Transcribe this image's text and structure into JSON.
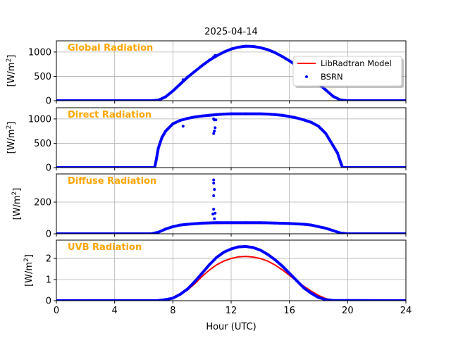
{
  "chart_data": {
    "type": "line",
    "title": "2025-04-14",
    "xlabel": "Hour (UTC)",
    "xlim": [
      0,
      24
    ],
    "xticks": [
      0,
      4,
      8,
      12,
      16,
      20,
      24
    ],
    "grid": true,
    "legend": {
      "placement": "upper-right of first panel",
      "entries": [
        "LibRadtran Model",
        "BSRN"
      ]
    },
    "colors": {
      "model": "#ff0000",
      "bsrn": "#0000ff",
      "panel_title": "#FFA500",
      "grid": "#b0b0b0"
    },
    "ylabel_base": "[W/m",
    "ylabel_sup": "2",
    "ylabel_end": "]",
    "panels": [
      {
        "title": "Global Radiation",
        "ylim": [
          0,
          1230
        ],
        "yticks": [
          0,
          500,
          1000
        ],
        "x": [
          0,
          6.5,
          7,
          7.5,
          8,
          8.5,
          9,
          9.5,
          10,
          10.5,
          11,
          11.5,
          12,
          12.5,
          13,
          13.5,
          14,
          14.5,
          15,
          15.5,
          16,
          16.5,
          17,
          17.5,
          18,
          18.5,
          19,
          19.5,
          20,
          24
        ],
        "bsrn": [
          0,
          0,
          10,
          80,
          200,
          340,
          480,
          600,
          720,
          830,
          920,
          1000,
          1060,
          1100,
          1120,
          1115,
          1090,
          1050,
          990,
          910,
          820,
          720,
          600,
          480,
          350,
          220,
          90,
          15,
          0,
          0
        ],
        "model": [
          0,
          0,
          10,
          80,
          200,
          340,
          480,
          600,
          720,
          830,
          920,
          1000,
          1060,
          1100,
          1120,
          1115,
          1090,
          1050,
          990,
          910,
          820,
          720,
          600,
          480,
          350,
          220,
          90,
          15,
          0,
          0
        ],
        "outliers": [
          [
            8.7,
            430
          ],
          [
            10.8,
            900
          ],
          [
            10.9,
            930
          ]
        ]
      },
      {
        "title": "Direct Radiation",
        "ylim": [
          0,
          1230
        ],
        "yticks": [
          0,
          500,
          1000
        ],
        "x": [
          0,
          6.75,
          6.85,
          7,
          7.25,
          7.5,
          8,
          8.5,
          9,
          9.5,
          10,
          10.5,
          11,
          11.5,
          12,
          13,
          14,
          14.5,
          15,
          15.5,
          16,
          16.5,
          17,
          17.5,
          18,
          18.5,
          19,
          19.3,
          19.55,
          19.65,
          24
        ],
        "bsrn": [
          0,
          0,
          150,
          400,
          620,
          750,
          900,
          970,
          1010,
          1040,
          1060,
          1075,
          1090,
          1100,
          1105,
          1105,
          1105,
          1100,
          1090,
          1075,
          1050,
          1020,
          980,
          930,
          850,
          700,
          450,
          300,
          80,
          0,
          0
        ],
        "model": [
          0,
          0,
          150,
          400,
          620,
          750,
          900,
          970,
          1010,
          1040,
          1060,
          1075,
          1090,
          1100,
          1105,
          1105,
          1105,
          1100,
          1090,
          1075,
          1050,
          1020,
          980,
          930,
          850,
          700,
          450,
          300,
          80,
          0,
          0
        ],
        "outliers": [
          [
            8.7,
            850
          ],
          [
            10.8,
            1000
          ],
          [
            10.85,
            980
          ],
          [
            10.8,
            700
          ],
          [
            10.85,
            750
          ],
          [
            10.9,
            820
          ],
          [
            10.95,
            980
          ]
        ]
      },
      {
        "title": "Diffuse Radiation",
        "ylim": [
          0,
          378
        ],
        "yticks": [
          0,
          200
        ],
        "x": [
          0,
          6.5,
          7,
          7.5,
          8,
          8.5,
          9,
          10,
          11,
          12,
          13,
          14,
          15,
          16,
          17,
          17.5,
          18,
          18.5,
          19,
          19.5,
          20,
          24
        ],
        "bsrn": [
          0,
          0,
          10,
          30,
          45,
          55,
          60,
          67,
          70,
          70,
          70,
          70,
          68,
          65,
          60,
          55,
          45,
          35,
          20,
          5,
          0,
          0
        ],
        "model": [
          0,
          0,
          8,
          28,
          43,
          52,
          58,
          63,
          65,
          66,
          66,
          66,
          65,
          63,
          58,
          53,
          44,
          34,
          19,
          5,
          0,
          0
        ],
        "outliers": [
          [
            10.8,
            340
          ],
          [
            10.8,
            320
          ],
          [
            10.85,
            280
          ],
          [
            10.8,
            240
          ],
          [
            10.8,
            155
          ],
          [
            10.75,
            125
          ],
          [
            10.9,
            130
          ],
          [
            10.85,
            95
          ]
        ]
      },
      {
        "title": "UVB Radiation",
        "ylim": [
          0,
          2.87
        ],
        "yticks": [
          0,
          1,
          2
        ],
        "x": [
          0,
          7,
          7.5,
          8,
          8.5,
          9,
          9.5,
          10,
          10.5,
          11,
          11.5,
          12,
          12.5,
          13,
          13.5,
          14,
          14.5,
          15,
          15.5,
          16,
          16.5,
          17,
          17.5,
          18,
          18.5,
          19,
          24
        ],
        "bsrn": [
          0,
          0.01,
          0.05,
          0.12,
          0.3,
          0.55,
          0.9,
          1.3,
          1.7,
          2.05,
          2.3,
          2.45,
          2.55,
          2.57,
          2.52,
          2.4,
          2.2,
          1.95,
          1.65,
          1.3,
          0.95,
          0.6,
          0.35,
          0.15,
          0.05,
          0.01,
          0
        ],
        "model": [
          0,
          0.01,
          0.05,
          0.12,
          0.28,
          0.5,
          0.8,
          1.15,
          1.45,
          1.7,
          1.88,
          2.0,
          2.08,
          2.1,
          2.07,
          2.0,
          1.88,
          1.7,
          1.47,
          1.2,
          0.93,
          0.68,
          0.45,
          0.25,
          0.1,
          0.02,
          0
        ],
        "outliers": []
      }
    ]
  }
}
